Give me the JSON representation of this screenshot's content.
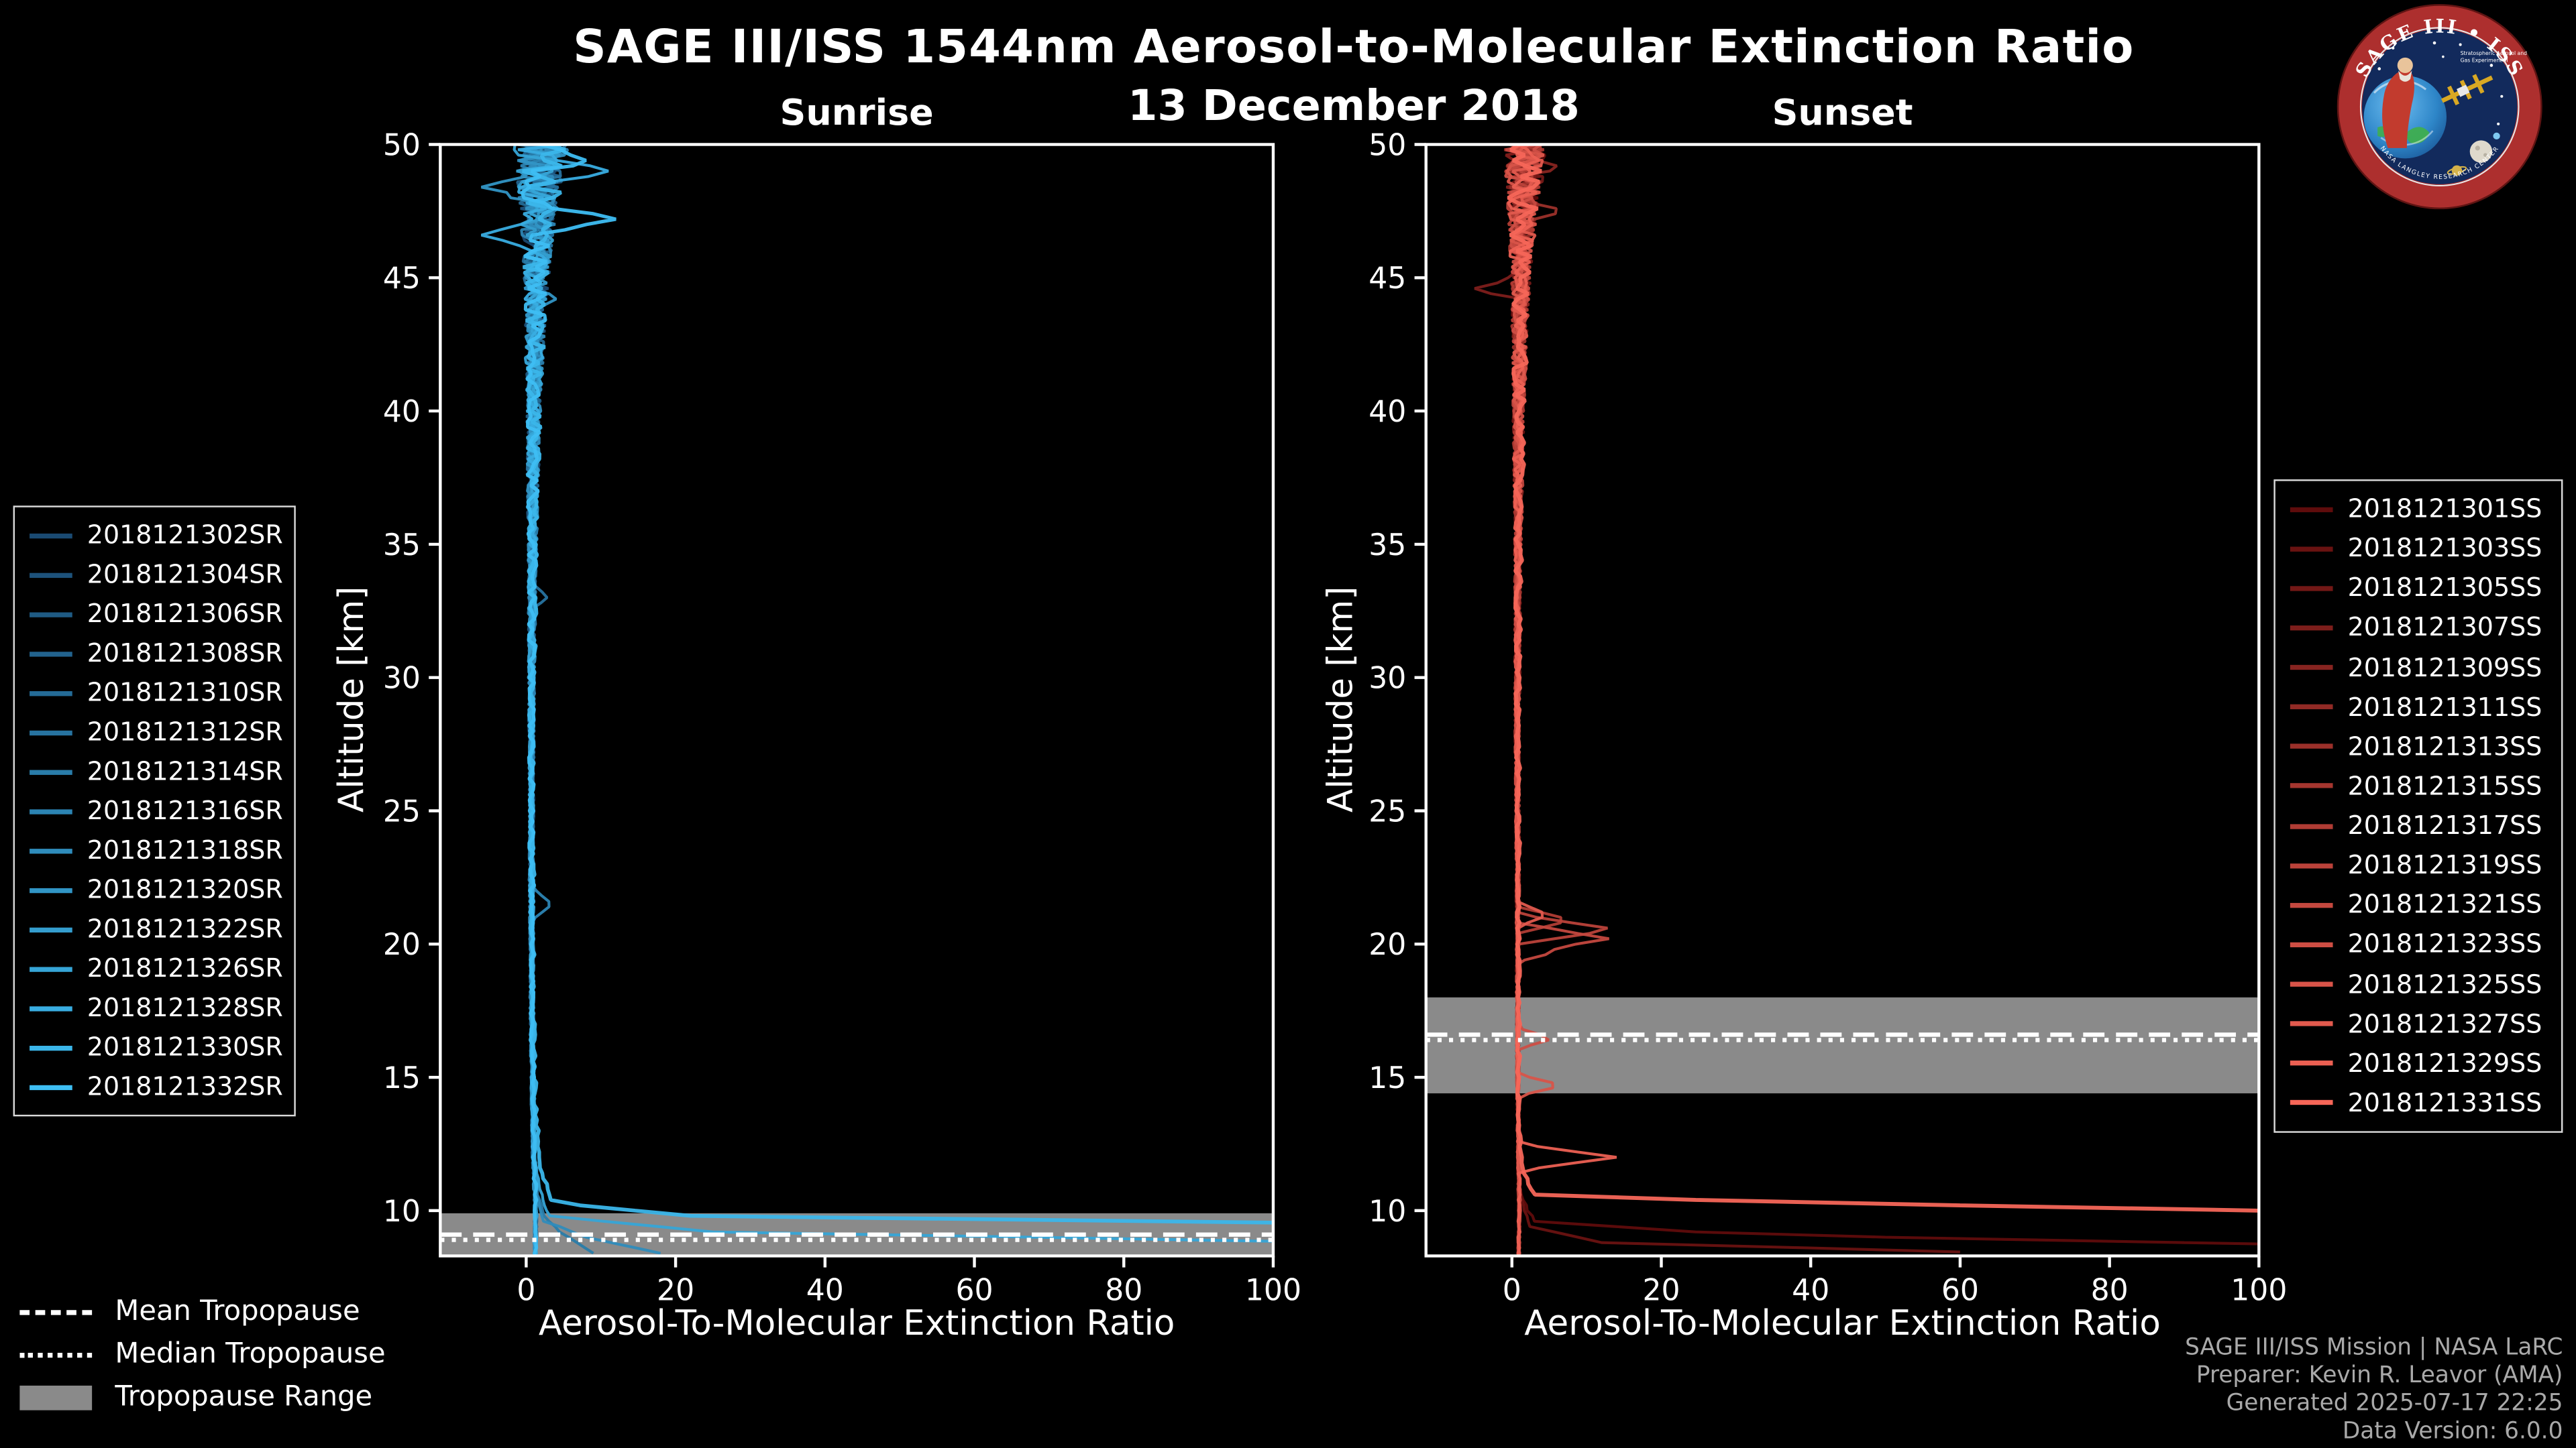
{
  "page": {
    "background": "#000000",
    "title": "SAGE III/ISS 1544nm Aerosol-to-Molecular Extinction Ratio",
    "subtitle": "13 December 2018"
  },
  "logo": {
    "ring_text": "SAGE III • ISS",
    "tagline_1": "Stratospheric Aerosol and",
    "tagline_2": "Gas Experiment III",
    "bottom_text": "NASA LANGLEY RESEARCH CENTER",
    "ring_color": "#ad2f2e",
    "inner_color": "#122a5c"
  },
  "tropopause_legend": {
    "items": [
      {
        "label": "Mean Tropopause",
        "style": "dashed",
        "color": "#ffffff"
      },
      {
        "label": "Median Tropopause",
        "style": "dotted",
        "color": "#ffffff"
      },
      {
        "label": "Tropopause Range",
        "style": "band",
        "color": "#8a8a8a"
      }
    ]
  },
  "attribution": {
    "lines": [
      "SAGE III/ISS Mission | NASA LaRC",
      "Preparer: Kevin R. Leavor (AMA)",
      "Generated 2025-07-17 22:25",
      "Data Version: 6.0.0"
    ]
  },
  "chart_data": [
    {
      "type": "line",
      "title": "Sunrise",
      "xlabel": "Aerosol-To-Molecular Extinction Ratio",
      "ylabel": "Altitude [km]",
      "xlim": [
        -11.5,
        100
      ],
      "ylim": [
        8.3,
        50
      ],
      "xticks": [
        0,
        20,
        40,
        60,
        80,
        100
      ],
      "yticks": [
        10,
        15,
        20,
        25,
        30,
        35,
        40,
        45,
        50
      ],
      "grid": false,
      "legend_position": "outside-left",
      "tropopause": {
        "mean_km": 9.1,
        "median_km": 8.9,
        "range_km": [
          7.8,
          9.9
        ],
        "band_color": "#8a8a8a"
      },
      "sample_step_km": 0.2,
      "noise_scale": 1.25,
      "noise_amp_by_alt": [
        [
          8,
          0.15
        ],
        [
          12,
          0.18
        ],
        [
          18,
          0.22
        ],
        [
          26,
          0.28
        ],
        [
          34,
          0.45
        ],
        [
          40,
          0.8
        ],
        [
          44,
          1.2
        ],
        [
          47,
          1.9
        ],
        [
          50,
          3.0
        ]
      ],
      "default_anchors": [
        [
          8.3,
          1.2
        ],
        [
          10,
          1.3
        ],
        [
          12,
          1.0
        ],
        [
          16,
          0.8
        ],
        [
          22,
          0.7
        ],
        [
          28,
          0.7
        ],
        [
          34,
          0.8
        ],
        [
          40,
          1.0
        ],
        [
          44,
          1.3
        ],
        [
          47,
          1.6
        ],
        [
          50,
          2.0
        ]
      ],
      "series": [
        {
          "name": "2018121302SR",
          "color": "#1a4a72",
          "seed": 11
        },
        {
          "name": "2018121304SR",
          "color": "#1d527b",
          "seed": 23
        },
        {
          "name": "2018121306SR",
          "color": "#1f5b84",
          "seed": 35
        },
        {
          "name": "2018121308SR",
          "color": "#22638e",
          "seed": 47
        },
        {
          "name": "2018121310SR",
          "color": "#246b97",
          "seed": 59
        },
        {
          "name": "2018121312SR",
          "color": "#2773a0",
          "seed": 71,
          "features": [
            [
              33,
              2.8,
              0.5
            ]
          ]
        },
        {
          "name": "2018121314SR",
          "color": "#297ca9",
          "seed": 83,
          "anchors": [
            [
              8.4,
              9
            ],
            [
              9.3,
              4
            ],
            [
              10,
              2
            ],
            [
              12,
              1.0
            ],
            [
              16,
              0.8
            ],
            [
              22,
              0.7
            ],
            [
              28,
              0.7
            ],
            [
              34,
              0.8
            ],
            [
              40,
              1.0
            ],
            [
              44,
              1.3
            ],
            [
              47,
              1.6
            ],
            [
              50,
              2.0
            ]
          ]
        },
        {
          "name": "2018121316SR",
          "color": "#2c84b3",
          "seed": 95,
          "features": [
            [
              21.5,
              3.5,
              0.6
            ]
          ]
        },
        {
          "name": "2018121318SR",
          "color": "#2f8cbc",
          "seed": 107,
          "anchors": [
            [
              8.4,
              18
            ],
            [
              9.0,
              8
            ],
            [
              9.6,
              2.5
            ],
            [
              10.5,
              1.5
            ],
            [
              12,
              1.0
            ],
            [
              16,
              0.8
            ],
            [
              22,
              0.7
            ],
            [
              28,
              0.7
            ],
            [
              34,
              0.8
            ],
            [
              40,
              1.0
            ],
            [
              44,
              1.3
            ],
            [
              47,
              1.7
            ],
            [
              50,
              2.2
            ]
          ]
        },
        {
          "name": "2018121320SR",
          "color": "#3195c5",
          "seed": 119,
          "features": [
            [
              48.4,
              -6,
              0.5
            ],
            [
              44.2,
              4,
              0.4
            ]
          ]
        },
        {
          "name": "2018121322SR",
          "color": "#349dce",
          "seed": 131
        },
        {
          "name": "2018121326SR",
          "color": "#36a5d7",
          "seed": 143,
          "anchors": [
            [
              8.85,
              100
            ],
            [
              9.2,
              25
            ],
            [
              9.8,
              3
            ],
            [
              11,
              1.5
            ],
            [
              14,
              1.0
            ],
            [
              18,
              0.8
            ],
            [
              24,
              0.7
            ],
            [
              30,
              0.7
            ],
            [
              36,
              0.8
            ],
            [
              42,
              1.1
            ],
            [
              46,
              1.5
            ],
            [
              50,
              2.0
            ]
          ]
        },
        {
          "name": "2018121328SR",
          "color": "#39ade1",
          "seed": 155,
          "features": [
            [
              49.0,
              11,
              0.5
            ],
            [
              46.6,
              -6,
              0.45
            ]
          ]
        },
        {
          "name": "2018121330SR",
          "color": "#3bb6ea",
          "seed": 167,
          "width": 2.3,
          "anchors": [
            [
              9.55,
              100
            ],
            [
              9.8,
              22
            ],
            [
              10.3,
              3.5
            ],
            [
              11.5,
              2.0
            ],
            [
              14,
              1.2
            ],
            [
              18,
              0.9
            ],
            [
              24,
              0.8
            ],
            [
              30,
              0.8
            ],
            [
              36,
              0.9
            ],
            [
              42,
              1.2
            ],
            [
              46,
              1.5
            ],
            [
              50,
              2.1
            ]
          ]
        },
        {
          "name": "2018121332SR",
          "color": "#3ebef3",
          "seed": 179,
          "width": 2.1,
          "features": [
            [
              47.2,
              12,
              0.6
            ],
            [
              49.4,
              8,
              0.5
            ]
          ]
        }
      ]
    },
    {
      "type": "line",
      "title": "Sunset",
      "xlabel": "Aerosol-To-Molecular Extinction Ratio",
      "ylabel": "Altitude [km]",
      "xlim": [
        -11.5,
        100
      ],
      "ylim": [
        8.3,
        50
      ],
      "xticks": [
        0,
        20,
        40,
        60,
        80,
        100
      ],
      "yticks": [
        10,
        15,
        20,
        25,
        30,
        35,
        40,
        45,
        50
      ],
      "grid": false,
      "legend_position": "outside-right",
      "tropopause": {
        "mean_km": 16.6,
        "median_km": 16.4,
        "range_km": [
          14.4,
          18.0
        ],
        "band_color": "#8a8a8a"
      },
      "sample_step_km": 0.2,
      "noise_scale": 1.0,
      "noise_amp_by_alt": [
        [
          8,
          0.15
        ],
        [
          12,
          0.18
        ],
        [
          18,
          0.22
        ],
        [
          26,
          0.28
        ],
        [
          34,
          0.45
        ],
        [
          40,
          0.8
        ],
        [
          44,
          1.2
        ],
        [
          47,
          1.9
        ],
        [
          50,
          3.0
        ]
      ],
      "default_anchors": [
        [
          8.3,
          0.9
        ],
        [
          10,
          1.0
        ],
        [
          12,
          0.9
        ],
        [
          15,
          0.8
        ],
        [
          18,
          0.8
        ],
        [
          22,
          0.8
        ],
        [
          28,
          0.7
        ],
        [
          34,
          0.8
        ],
        [
          40,
          0.9
        ],
        [
          44,
          1.1
        ],
        [
          47,
          1.4
        ],
        [
          50,
          1.8
        ]
      ],
      "series": [
        {
          "name": "2018121301SS",
          "color": "#5f0c0c",
          "seed": 211,
          "anchors": [
            [
              8.75,
              100
            ],
            [
              9.1,
              30
            ],
            [
              9.6,
              3.0
            ],
            [
              10.5,
              1.2
            ],
            [
              12,
              0.9
            ],
            [
              15,
              0.8
            ],
            [
              18,
              0.8
            ],
            [
              22,
              0.8
            ],
            [
              28,
              0.7
            ],
            [
              34,
              0.8
            ],
            [
              40,
              0.9
            ],
            [
              44,
              1.1
            ],
            [
              47,
              1.4
            ],
            [
              50,
              1.8
            ]
          ]
        },
        {
          "name": "2018121303SS",
          "color": "#691211",
          "seed": 223,
          "anchors": [
            [
              8.45,
              60
            ],
            [
              8.8,
              12
            ],
            [
              9.4,
              2.5
            ],
            [
              10.5,
              1.1
            ],
            [
              12,
              0.9
            ],
            [
              15,
              0.8
            ],
            [
              18,
              0.8
            ],
            [
              22,
              0.8
            ],
            [
              28,
              0.7
            ],
            [
              34,
              0.8
            ],
            [
              40,
              0.9
            ],
            [
              44,
              1.1
            ],
            [
              47,
              1.4
            ],
            [
              50,
              1.8
            ]
          ]
        },
        {
          "name": "2018121305SS",
          "color": "#731816",
          "seed": 235
        },
        {
          "name": "2018121307SS",
          "color": "#7d1e1b",
          "seed": 247,
          "features": [
            [
              44.6,
              -5,
              0.45
            ]
          ]
        },
        {
          "name": "2018121309SS",
          "color": "#872420",
          "seed": 259,
          "features": [
            [
              49.2,
              6,
              0.45
            ]
          ]
        },
        {
          "name": "2018121311SS",
          "color": "#912a25",
          "seed": 271
        },
        {
          "name": "2018121313SS",
          "color": "#9b302a",
          "seed": 283,
          "features": [
            [
              47.5,
              7,
              0.5
            ]
          ]
        },
        {
          "name": "2018121315SS",
          "color": "#a5362f",
          "seed": 295
        },
        {
          "name": "2018121317SS",
          "color": "#b03c34",
          "seed": 307,
          "features": [
            [
              20.9,
              8,
              0.5
            ]
          ]
        },
        {
          "name": "2018121319SS",
          "color": "#ba423a",
          "seed": 319,
          "features": [
            [
              20.55,
              14,
              0.55
            ]
          ]
        },
        {
          "name": "2018121321SS",
          "color": "#c4483f",
          "seed": 331,
          "features": [
            [
              20.2,
              13,
              0.6
            ],
            [
              19.7,
              6,
              0.35
            ]
          ]
        },
        {
          "name": "2018121323SS",
          "color": "#ce4e44",
          "seed": 343,
          "features": [
            [
              16.45,
              5.5,
              0.4
            ]
          ]
        },
        {
          "name": "2018121325SS",
          "color": "#d85449",
          "seed": 355,
          "features": [
            [
              14.7,
              7,
              0.4
            ]
          ]
        },
        {
          "name": "2018121327SS",
          "color": "#e25a4e",
          "seed": 367,
          "features": [
            [
              21.1,
              5,
              0.45
            ]
          ]
        },
        {
          "name": "2018121329SS",
          "color": "#ec6053",
          "seed": 379,
          "features": [
            [
              12.0,
              14,
              0.5
            ]
          ]
        },
        {
          "name": "2018121331SS",
          "color": "#f66658",
          "seed": 391,
          "width": 2.4,
          "anchors": [
            [
              10.0,
              100
            ],
            [
              10.35,
              30
            ],
            [
              10.6,
              3.0
            ],
            [
              11.5,
              1.5
            ],
            [
              13,
              1.0
            ],
            [
              15,
              0.9
            ],
            [
              18,
              0.9
            ],
            [
              22,
              0.9
            ],
            [
              28,
              0.8
            ],
            [
              34,
              0.9
            ],
            [
              40,
              1.0
            ],
            [
              44,
              1.2
            ],
            [
              47,
              1.5
            ],
            [
              50,
              1.9
            ]
          ]
        }
      ]
    }
  ]
}
